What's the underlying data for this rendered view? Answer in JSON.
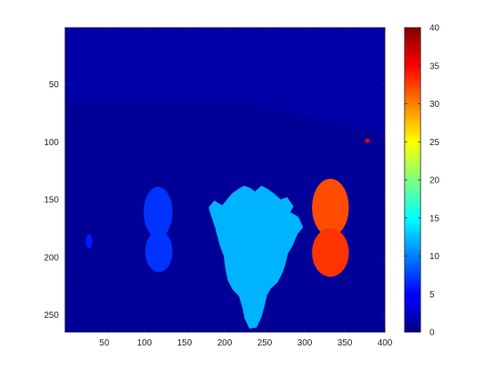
{
  "chart_data": {
    "type": "heatmap",
    "title": "",
    "xlabel": "",
    "ylabel": "",
    "xlim": [
      1,
      400
    ],
    "ylim": [
      1,
      265
    ],
    "y_direction": "reversed",
    "xticks": [
      50,
      100,
      150,
      200,
      250,
      300,
      350,
      400
    ],
    "yticks": [
      50,
      100,
      150,
      200,
      250
    ],
    "colorbar": {
      "colormap": "jet",
      "clim": [
        0,
        40
      ],
      "ticks": [
        0,
        5,
        10,
        15,
        20,
        25,
        30,
        35,
        40
      ],
      "placement": "right"
    },
    "regions": [
      {
        "label": "background",
        "value": 1,
        "shape": "rect",
        "x": [
          1,
          400
        ],
        "y": [
          1,
          265
        ]
      },
      {
        "label": "tissue-band",
        "value": 2,
        "shape": "band"
      },
      {
        "label": "central-region",
        "value": 12,
        "shape": "blob"
      },
      {
        "label": "left-upper-lobe",
        "value": 7,
        "shape": "ellipse",
        "cx": 117,
        "cy": 161,
        "rx": 18,
        "ry": 22
      },
      {
        "label": "left-lower-lobe",
        "value": 7,
        "shape": "ellipse",
        "cx": 118,
        "cy": 195,
        "rx": 17,
        "ry": 18
      },
      {
        "label": "right-upper-lobe",
        "value": 32,
        "shape": "ellipse",
        "cx": 332,
        "cy": 157,
        "rx": 23,
        "ry": 25
      },
      {
        "label": "right-lower-lobe",
        "value": 33,
        "shape": "ellipse",
        "cx": 332,
        "cy": 196,
        "rx": 23,
        "ry": 21
      },
      {
        "label": "left-small-spot",
        "value": 6,
        "shape": "ellipse",
        "cx": 31,
        "cy": 186,
        "rx": 4,
        "ry": 6
      },
      {
        "label": "right-speck",
        "value": 36,
        "shape": "ellipse",
        "cx": 378,
        "cy": 99,
        "rx": 3,
        "ry": 2
      }
    ]
  }
}
